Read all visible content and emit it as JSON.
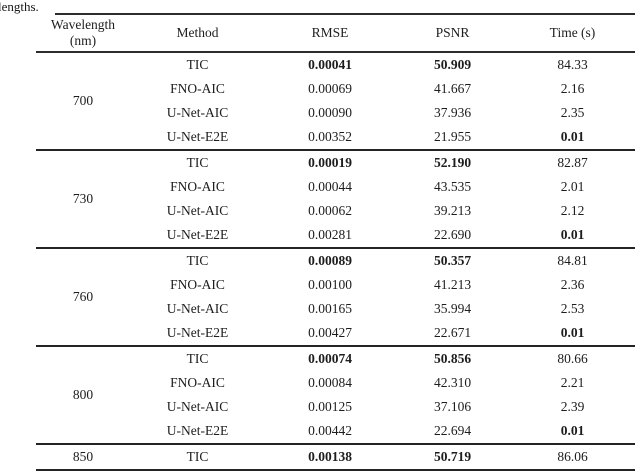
{
  "caption_fragment": "lengths.",
  "colors": {
    "background": "#ffffff",
    "text": "#1d1d1d",
    "rule": "#2c2c2c"
  },
  "table": {
    "headers": [
      {
        "line1": "Wavelength",
        "line2": "(nm)"
      },
      {
        "label": "Method"
      },
      {
        "label": "RMSE"
      },
      {
        "label": "PSNR"
      },
      {
        "label": "Time (s)"
      }
    ],
    "groups": [
      {
        "wavelength": "700",
        "rows": [
          {
            "method": "TIC",
            "rmse": "0.00041",
            "psnr": "50.909",
            "time": "84.33",
            "rmse_bold": true,
            "psnr_bold": true,
            "time_bold": false
          },
          {
            "method": "FNO-AIC",
            "rmse": "0.00069",
            "psnr": "41.667",
            "time": "2.16",
            "rmse_bold": false,
            "psnr_bold": false,
            "time_bold": false
          },
          {
            "method": "U-Net-AIC",
            "rmse": "0.00090",
            "psnr": "37.936",
            "time": "2.35",
            "rmse_bold": false,
            "psnr_bold": false,
            "time_bold": false
          },
          {
            "method": "U-Net-E2E",
            "rmse": "0.00352",
            "psnr": "21.955",
            "time": "0.01",
            "rmse_bold": false,
            "psnr_bold": false,
            "time_bold": true
          }
        ]
      },
      {
        "wavelength": "730",
        "rows": [
          {
            "method": "TIC",
            "rmse": "0.00019",
            "psnr": "52.190",
            "time": "82.87",
            "rmse_bold": true,
            "psnr_bold": true,
            "time_bold": false
          },
          {
            "method": "FNO-AIC",
            "rmse": "0.00044",
            "psnr": "43.535",
            "time": "2.01",
            "rmse_bold": false,
            "psnr_bold": false,
            "time_bold": false
          },
          {
            "method": "U-Net-AIC",
            "rmse": "0.00062",
            "psnr": "39.213",
            "time": "2.12",
            "rmse_bold": false,
            "psnr_bold": false,
            "time_bold": false
          },
          {
            "method": "U-Net-E2E",
            "rmse": "0.00281",
            "psnr": "22.690",
            "time": "0.01",
            "rmse_bold": false,
            "psnr_bold": false,
            "time_bold": true
          }
        ]
      },
      {
        "wavelength": "760",
        "rows": [
          {
            "method": "TIC",
            "rmse": "0.00089",
            "psnr": "50.357",
            "time": "84.81",
            "rmse_bold": true,
            "psnr_bold": true,
            "time_bold": false
          },
          {
            "method": "FNO-AIC",
            "rmse": "0.00100",
            "psnr": "41.213",
            "time": "2.36",
            "rmse_bold": false,
            "psnr_bold": false,
            "time_bold": false
          },
          {
            "method": "U-Net-AIC",
            "rmse": "0.00165",
            "psnr": "35.994",
            "time": "2.53",
            "rmse_bold": false,
            "psnr_bold": false,
            "time_bold": false
          },
          {
            "method": "U-Net-E2E",
            "rmse": "0.00427",
            "psnr": "22.671",
            "time": "0.01",
            "rmse_bold": false,
            "psnr_bold": false,
            "time_bold": true
          }
        ]
      },
      {
        "wavelength": "800",
        "rows": [
          {
            "method": "TIC",
            "rmse": "0.00074",
            "psnr": "50.856",
            "time": "80.66",
            "rmse_bold": true,
            "psnr_bold": true,
            "time_bold": false
          },
          {
            "method": "FNO-AIC",
            "rmse": "0.00084",
            "psnr": "42.310",
            "time": "2.21",
            "rmse_bold": false,
            "psnr_bold": false,
            "time_bold": false
          },
          {
            "method": "U-Net-AIC",
            "rmse": "0.00125",
            "psnr": "37.106",
            "time": "2.39",
            "rmse_bold": false,
            "psnr_bold": false,
            "time_bold": false
          },
          {
            "method": "U-Net-E2E",
            "rmse": "0.00442",
            "psnr": "22.694",
            "time": "0.01",
            "rmse_bold": false,
            "psnr_bold": false,
            "time_bold": true
          }
        ]
      },
      {
        "wavelength": "850",
        "rows": [
          {
            "method": "TIC",
            "rmse": "0.00138",
            "psnr": "50.719",
            "time": "86.06",
            "rmse_bold": true,
            "psnr_bold": true,
            "time_bold": false
          }
        ]
      }
    ]
  }
}
